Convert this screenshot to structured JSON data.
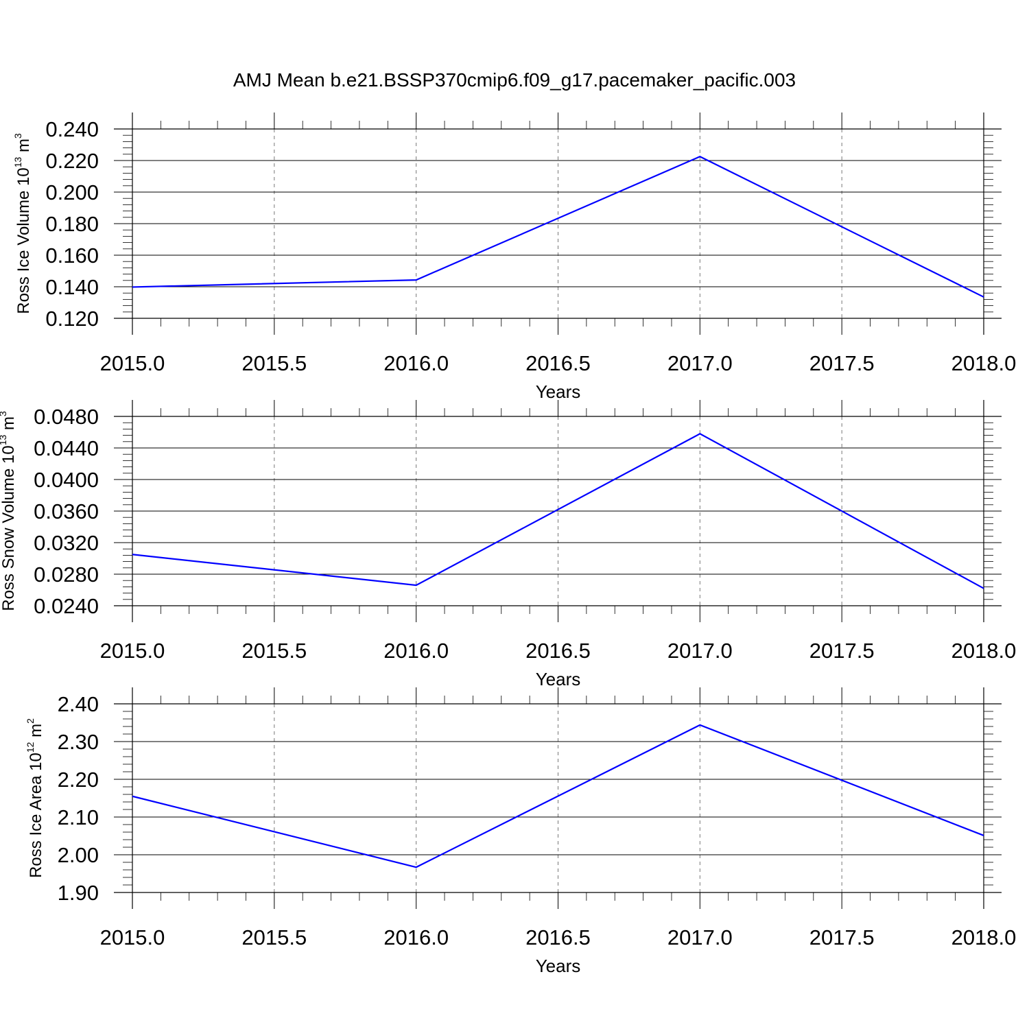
{
  "title": "AMJ Mean b.e21.BSSP370cmip6.f09_g17.pacemaker_pacific.003",
  "line_color": "#0000ff",
  "chart_data": [
    {
      "type": "line",
      "ylabel": "Ross Ice Volume 10",
      "ylabel_exp": "13",
      "ylabel_unit": " m",
      "ylabel_unit_exp": "3",
      "xlabel": "Years",
      "xlim": [
        2015.0,
        2018.0
      ],
      "ylim": [
        0.12,
        0.24
      ],
      "xticks": [
        "2015.0",
        "2015.5",
        "2016.0",
        "2016.5",
        "2017.0",
        "2017.5",
        "2018.0"
      ],
      "yticks": [
        "0.120",
        "0.140",
        "0.160",
        "0.180",
        "0.200",
        "0.220",
        "0.240"
      ],
      "x": [
        2015,
        2016,
        2017,
        2018
      ],
      "values": [
        0.1398,
        0.1443,
        0.2225,
        0.1335
      ]
    },
    {
      "type": "line",
      "ylabel": "Ross Snow Volume 10",
      "ylabel_exp": "13",
      "ylabel_unit": " m",
      "ylabel_unit_exp": "3",
      "xlabel": "Years",
      "xlim": [
        2015.0,
        2018.0
      ],
      "ylim": [
        0.024,
        0.048
      ],
      "xticks": [
        "2015.0",
        "2015.5",
        "2016.0",
        "2016.5",
        "2017.0",
        "2017.5",
        "2018.0"
      ],
      "yticks": [
        "0.0240",
        "0.0280",
        "0.0320",
        "0.0360",
        "0.0400",
        "0.0440",
        "0.0480"
      ],
      "x": [
        2015,
        2016,
        2017,
        2018
      ],
      "values": [
        0.0305,
        0.0266,
        0.0458,
        0.0262
      ]
    },
    {
      "type": "line",
      "ylabel": "Ross Ice Area 10",
      "ylabel_exp": "12",
      "ylabel_unit": " m",
      "ylabel_unit_exp": "2",
      "xlabel": "Years",
      "xlim": [
        2015.0,
        2018.0
      ],
      "ylim": [
        1.9,
        2.4
      ],
      "xticks": [
        "2015.0",
        "2015.5",
        "2016.0",
        "2016.5",
        "2017.0",
        "2017.5",
        "2018.0"
      ],
      "yticks": [
        "1.90",
        "2.00",
        "2.10",
        "2.20",
        "2.30",
        "2.40"
      ],
      "x": [
        2015,
        2016,
        2017,
        2018
      ],
      "values": [
        2.155,
        1.967,
        2.344,
        2.051
      ]
    }
  ]
}
